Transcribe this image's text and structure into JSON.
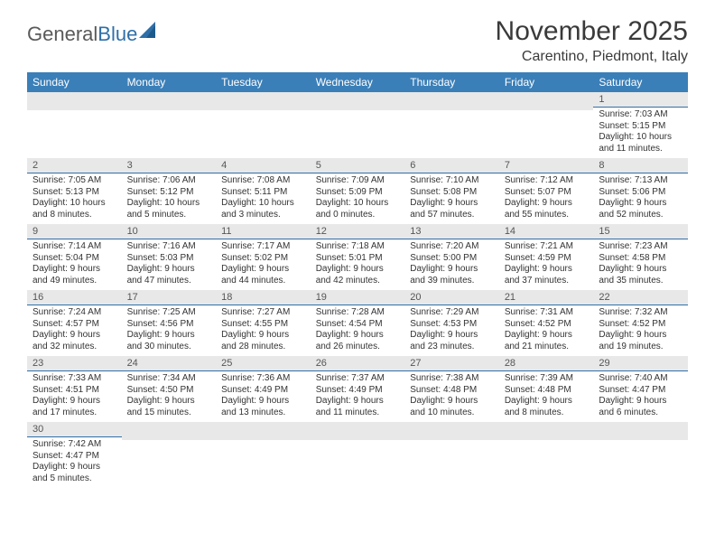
{
  "logo": {
    "text1": "General",
    "text2": "Blue"
  },
  "title": "November 2025",
  "subtitle": "Carentino, Piedmont, Italy",
  "header_bg": "#3b7fb8",
  "daynum_bg": "#e8e8e8",
  "divider_color": "#2f6fa8",
  "dow": [
    "Sunday",
    "Monday",
    "Tuesday",
    "Wednesday",
    "Thursday",
    "Friday",
    "Saturday"
  ],
  "weeks": [
    [
      null,
      null,
      null,
      null,
      null,
      null,
      {
        "n": "1",
        "sr": "7:03 AM",
        "ss": "5:15 PM",
        "dl": "10 hours and 11 minutes."
      }
    ],
    [
      {
        "n": "2",
        "sr": "7:05 AM",
        "ss": "5:13 PM",
        "dl": "10 hours and 8 minutes."
      },
      {
        "n": "3",
        "sr": "7:06 AM",
        "ss": "5:12 PM",
        "dl": "10 hours and 5 minutes."
      },
      {
        "n": "4",
        "sr": "7:08 AM",
        "ss": "5:11 PM",
        "dl": "10 hours and 3 minutes."
      },
      {
        "n": "5",
        "sr": "7:09 AM",
        "ss": "5:09 PM",
        "dl": "10 hours and 0 minutes."
      },
      {
        "n": "6",
        "sr": "7:10 AM",
        "ss": "5:08 PM",
        "dl": "9 hours and 57 minutes."
      },
      {
        "n": "7",
        "sr": "7:12 AM",
        "ss": "5:07 PM",
        "dl": "9 hours and 55 minutes."
      },
      {
        "n": "8",
        "sr": "7:13 AM",
        "ss": "5:06 PM",
        "dl": "9 hours and 52 minutes."
      }
    ],
    [
      {
        "n": "9",
        "sr": "7:14 AM",
        "ss": "5:04 PM",
        "dl": "9 hours and 49 minutes."
      },
      {
        "n": "10",
        "sr": "7:16 AM",
        "ss": "5:03 PM",
        "dl": "9 hours and 47 minutes."
      },
      {
        "n": "11",
        "sr": "7:17 AM",
        "ss": "5:02 PM",
        "dl": "9 hours and 44 minutes."
      },
      {
        "n": "12",
        "sr": "7:18 AM",
        "ss": "5:01 PM",
        "dl": "9 hours and 42 minutes."
      },
      {
        "n": "13",
        "sr": "7:20 AM",
        "ss": "5:00 PM",
        "dl": "9 hours and 39 minutes."
      },
      {
        "n": "14",
        "sr": "7:21 AM",
        "ss": "4:59 PM",
        "dl": "9 hours and 37 minutes."
      },
      {
        "n": "15",
        "sr": "7:23 AM",
        "ss": "4:58 PM",
        "dl": "9 hours and 35 minutes."
      }
    ],
    [
      {
        "n": "16",
        "sr": "7:24 AM",
        "ss": "4:57 PM",
        "dl": "9 hours and 32 minutes."
      },
      {
        "n": "17",
        "sr": "7:25 AM",
        "ss": "4:56 PM",
        "dl": "9 hours and 30 minutes."
      },
      {
        "n": "18",
        "sr": "7:27 AM",
        "ss": "4:55 PM",
        "dl": "9 hours and 28 minutes."
      },
      {
        "n": "19",
        "sr": "7:28 AM",
        "ss": "4:54 PM",
        "dl": "9 hours and 26 minutes."
      },
      {
        "n": "20",
        "sr": "7:29 AM",
        "ss": "4:53 PM",
        "dl": "9 hours and 23 minutes."
      },
      {
        "n": "21",
        "sr": "7:31 AM",
        "ss": "4:52 PM",
        "dl": "9 hours and 21 minutes."
      },
      {
        "n": "22",
        "sr": "7:32 AM",
        "ss": "4:52 PM",
        "dl": "9 hours and 19 minutes."
      }
    ],
    [
      {
        "n": "23",
        "sr": "7:33 AM",
        "ss": "4:51 PM",
        "dl": "9 hours and 17 minutes."
      },
      {
        "n": "24",
        "sr": "7:34 AM",
        "ss": "4:50 PM",
        "dl": "9 hours and 15 minutes."
      },
      {
        "n": "25",
        "sr": "7:36 AM",
        "ss": "4:49 PM",
        "dl": "9 hours and 13 minutes."
      },
      {
        "n": "26",
        "sr": "7:37 AM",
        "ss": "4:49 PM",
        "dl": "9 hours and 11 minutes."
      },
      {
        "n": "27",
        "sr": "7:38 AM",
        "ss": "4:48 PM",
        "dl": "9 hours and 10 minutes."
      },
      {
        "n": "28",
        "sr": "7:39 AM",
        "ss": "4:48 PM",
        "dl": "9 hours and 8 minutes."
      },
      {
        "n": "29",
        "sr": "7:40 AM",
        "ss": "4:47 PM",
        "dl": "9 hours and 6 minutes."
      }
    ],
    [
      {
        "n": "30",
        "sr": "7:42 AM",
        "ss": "4:47 PM",
        "dl": "9 hours and 5 minutes."
      },
      null,
      null,
      null,
      null,
      null,
      null
    ]
  ],
  "labels": {
    "sunrise": "Sunrise:",
    "sunset": "Sunset:",
    "daylight": "Daylight:"
  }
}
